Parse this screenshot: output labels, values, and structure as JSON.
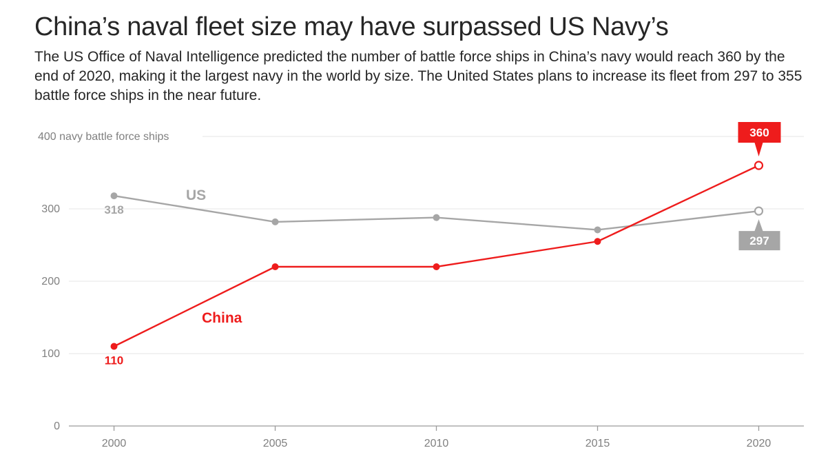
{
  "header": {
    "title": "China’s naval fleet size may have surpassed US Navy’s",
    "subtitle": "The US Office of Naval Intelligence predicted the number of battle force ships in China’s navy would reach 360 by the end of 2020, making it the largest navy in the world by size. The United States plans to increase its fleet from 297 to 355 battle force ships in the near future."
  },
  "chart_data": {
    "type": "line",
    "x": [
      2000,
      2005,
      2010,
      2015,
      2020
    ],
    "xlim": [
      1998.6,
      2021.4
    ],
    "ylim": [
      0,
      400
    ],
    "yticks": [
      0,
      100,
      200,
      300,
      400
    ],
    "ytick_labels": [
      "0",
      "100",
      "200",
      "300",
      "400 navy battle force ships"
    ],
    "xtick_labels": [
      "2000",
      "2005",
      "2010",
      "2015",
      "2020"
    ],
    "grid": true,
    "series": [
      {
        "name": "US",
        "color": "#a6a6a6",
        "values": [
          318,
          282,
          288,
          271,
          297
        ],
        "labels": {
          "start": "318",
          "end": "297"
        }
      },
      {
        "name": "China",
        "color": "#ee1c1c",
        "values": [
          110,
          220,
          220,
          255,
          360
        ],
        "labels": {
          "start": "110",
          "end": "360"
        }
      }
    ]
  }
}
